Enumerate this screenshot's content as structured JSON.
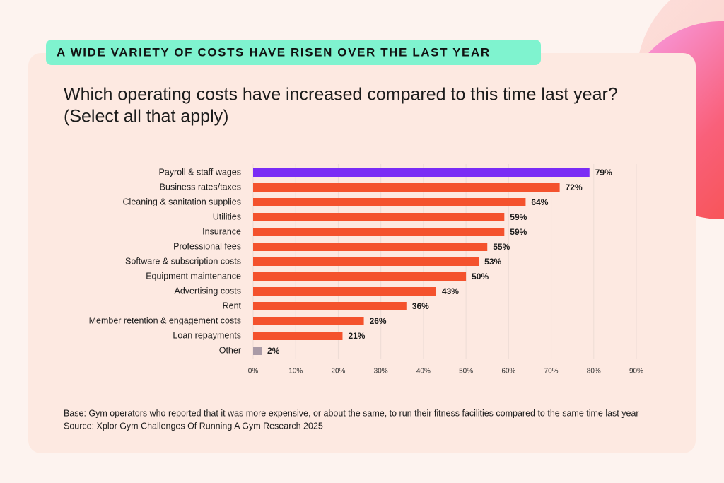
{
  "chart_data": {
    "type": "hbar",
    "banner": "A WIDE VARIETY OF COSTS HAVE RISEN OVER THE LAST YEAR",
    "title": "Which operating costs have increased compared to this time last year?",
    "subtitle": "(Select all that apply)",
    "categories": [
      "Payroll & staff wages",
      "Business rates/taxes",
      "Cleaning & sanitation supplies",
      "Utilities",
      "Insurance",
      "Professional fees",
      "Software & subscription costs",
      "Equipment maintenance",
      "Advertising costs",
      "Rent",
      "Member retention & engagement costs",
      "Loan repayments",
      "Other"
    ],
    "values": [
      79,
      72,
      64,
      59,
      59,
      55,
      53,
      50,
      43,
      36,
      26,
      21,
      2
    ],
    "value_labels": [
      "79%",
      "72%",
      "64%",
      "59%",
      "59%",
      "55%",
      "53%",
      "50%",
      "43%",
      "36%",
      "26%",
      "21%",
      "2%"
    ],
    "colors": [
      "#7a2cf5",
      "#f4522d",
      "#f4522d",
      "#f4522d",
      "#f4522d",
      "#f4522d",
      "#f4522d",
      "#f4522d",
      "#f4522d",
      "#f4522d",
      "#f4522d",
      "#f4522d",
      "#a99aa6"
    ],
    "xlim": [
      0,
      90
    ],
    "xticks": [
      {
        "value": 0,
        "label": "0%"
      },
      {
        "value": 10,
        "label": "10%"
      },
      {
        "value": 20,
        "label": "20%"
      },
      {
        "value": 30,
        "label": "30%"
      },
      {
        "value": 40,
        "label": "40%"
      },
      {
        "value": 50,
        "label": "50%"
      },
      {
        "value": 60,
        "label": "60%"
      },
      {
        "value": 70,
        "label": "70%"
      },
      {
        "value": 80,
        "label": "80%"
      },
      {
        "value": 90,
        "label": "90%"
      }
    ],
    "grid": true,
    "notes": [
      "Base: Gym operators who reported that it was more expensive, or about the same, to run their fitness facilities compared to the same time last year",
      "Source: Xplor Gym Challenges Of Running A Gym Research 2025"
    ]
  }
}
